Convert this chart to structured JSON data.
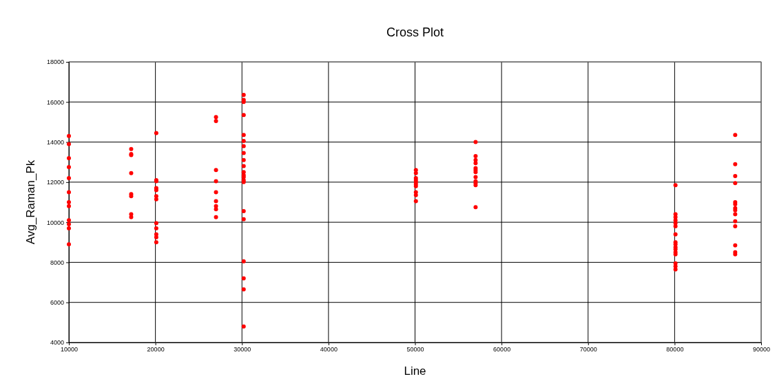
{
  "chart_data": {
    "type": "scatter",
    "title": "Cross Plot",
    "xlabel": "Line",
    "ylabel": "Avg_Raman_Pk",
    "xlim": [
      10000,
      90000
    ],
    "xticks": [
      10000,
      20000,
      30000,
      40000,
      50000,
      60000,
      70000,
      80000,
      90000
    ],
    "ylim": [
      4000,
      18000
    ],
    "yticks": [
      4000,
      6000,
      8000,
      10000,
      12000,
      14000,
      16000,
      18000
    ],
    "grid": true,
    "marker": "circle",
    "x": [
      10000,
      10000,
      10000,
      10000,
      10000,
      10000,
      10000,
      10000,
      10000,
      10000,
      10000,
      10000,
      17200,
      17200,
      17200,
      17200,
      17200,
      17200,
      17200,
      17200,
      20100,
      20100,
      20100,
      20100,
      20100,
      20100,
      20100,
      20100,
      20100,
      20100,
      20100,
      20100,
      27000,
      27000,
      27000,
      27000,
      27000,
      27000,
      27000,
      27000,
      27000,
      30200,
      30200,
      30200,
      30200,
      30200,
      30200,
      30200,
      30200,
      30200,
      30200,
      30200,
      30200,
      30200,
      30200,
      30200,
      30200,
      30200,
      30200,
      30200,
      30200,
      30200,
      50100,
      50100,
      50100,
      50100,
      50100,
      50100,
      50100,
      50100,
      50100,
      50100,
      57000,
      57000,
      57000,
      57000,
      57000,
      57000,
      57000,
      57000,
      57000,
      57000,
      57000,
      57000,
      80100,
      80100,
      80100,
      80100,
      80100,
      80100,
      80100,
      80100,
      80100,
      80100,
      80100,
      80100,
      80100,
      80100,
      80100,
      80100,
      87000,
      87000,
      87000,
      87000,
      87000,
      87000,
      87000,
      87000,
      87000,
      87000,
      87000,
      87000,
      87000,
      87000
    ],
    "series": [
      {
        "color": "#ff0000",
        "values": [
          14300,
          13900,
          13200,
          12750,
          12200,
          11500,
          11000,
          10800,
          10100,
          9900,
          9700,
          8900,
          13650,
          13400,
          13350,
          12450,
          11400,
          11300,
          10400,
          10250,
          14450,
          12100,
          12050,
          11700,
          11600,
          11300,
          11150,
          9950,
          9700,
          9400,
          9250,
          9000,
          15250,
          15050,
          12600,
          12050,
          11500,
          11050,
          10800,
          10650,
          10250,
          16350,
          16100,
          16000,
          15350,
          14350,
          14050,
          13800,
          13450,
          13100,
          12800,
          12500,
          12350,
          12250,
          12100,
          12000,
          10550,
          10150,
          8050,
          7200,
          6650,
          4800,
          12600,
          12450,
          12200,
          12100,
          12000,
          11900,
          11800,
          11500,
          11350,
          11050,
          14000,
          13300,
          13100,
          12950,
          12700,
          12600,
          12500,
          12250,
          12050,
          11950,
          11850,
          10750,
          11850,
          10400,
          10250,
          10100,
          9950,
          9800,
          9400,
          9000,
          8900,
          8750,
          8650,
          8500,
          8400,
          7950,
          7800,
          7650,
          14350,
          12900,
          12300,
          11950,
          11000,
          10900,
          10700,
          10600,
          10400,
          10050,
          9800,
          8850,
          8500,
          8400
        ]
      }
    ]
  }
}
